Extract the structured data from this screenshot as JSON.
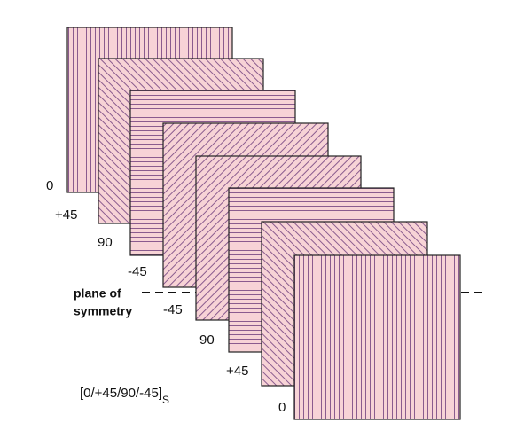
{
  "plies": [
    {
      "label": "0"
    },
    {
      "label": "+45"
    },
    {
      "label": "90"
    },
    {
      "label": "-45"
    },
    {
      "label": "-45"
    },
    {
      "label": "90"
    },
    {
      "label": "+45"
    },
    {
      "label": "0"
    }
  ],
  "symmetry_label": {
    "line1": "plane of",
    "line2": "symmetry"
  },
  "layup": {
    "text": "[0/+45/90/-45]",
    "subscript": "S"
  }
}
